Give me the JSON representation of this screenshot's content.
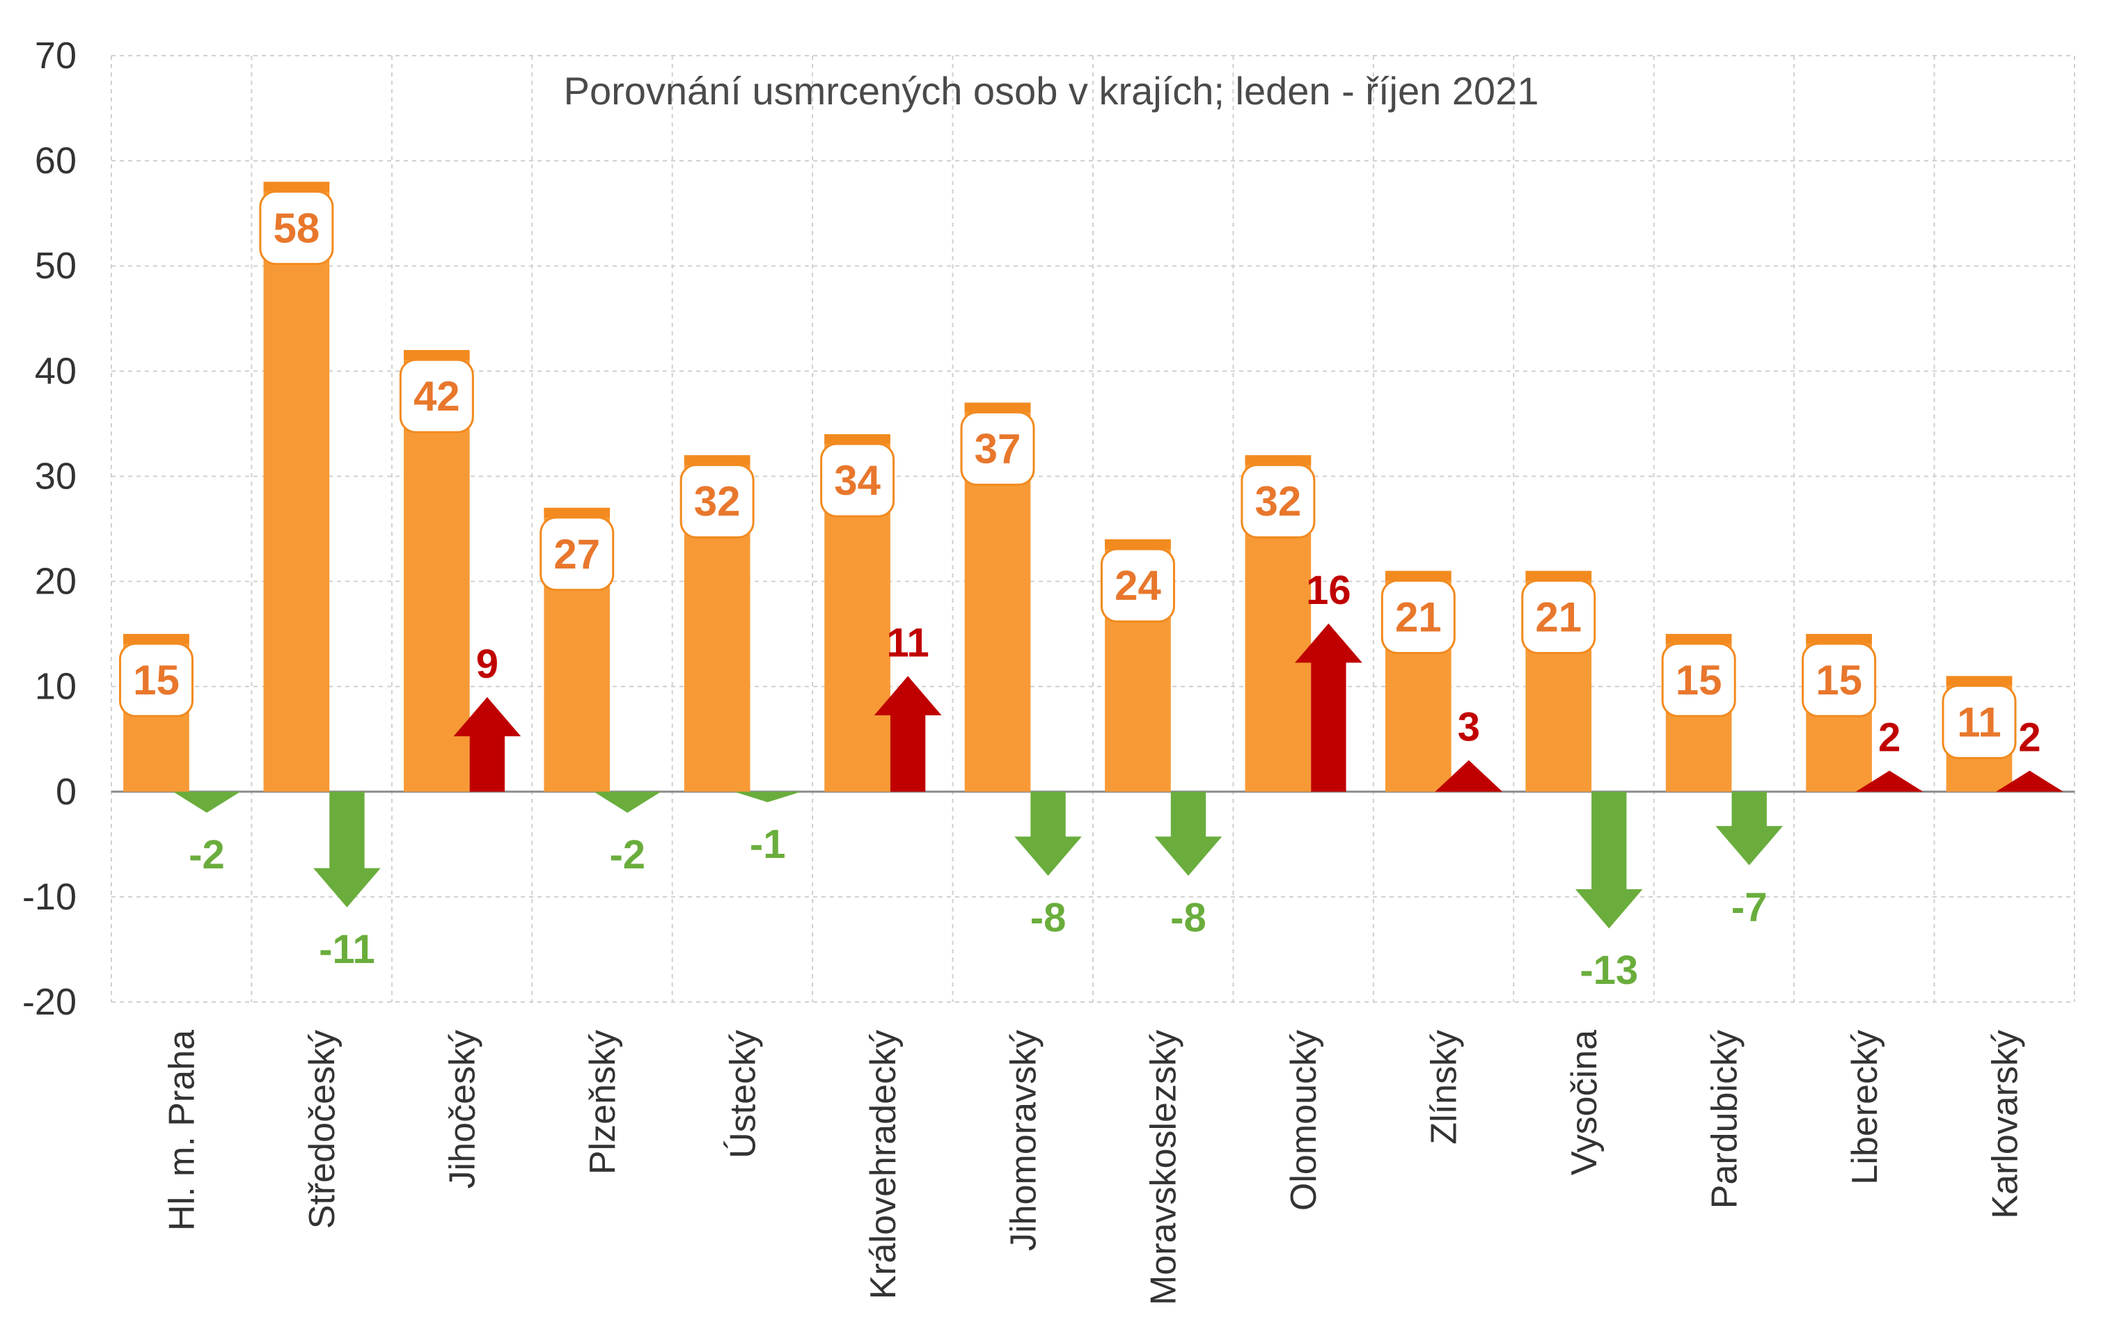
{
  "chart_data": {
    "type": "bar",
    "title": "Porovnání usmrcených osob v krajích; leden - říjen 2021",
    "categories": [
      "Hl. m. Praha",
      "Středočeský",
      "Jihočeský",
      "Plzeňský",
      "Ústecký",
      "Královehradecký",
      "Jihomoravský",
      "Moravskoslezský",
      "Olomoucký",
      "Zlínský",
      "Vysočina",
      "Pardubický",
      "Liberecký",
      "Karlovarský"
    ],
    "series": [
      {
        "values": [
          15,
          58,
          42,
          27,
          32,
          34,
          37,
          24,
          32,
          21,
          21,
          15,
          15,
          11
        ],
        "color": "#f79a36"
      },
      {
        "values": [
          -2,
          -11,
          9,
          -2,
          -1,
          11,
          -8,
          -8,
          16,
          3,
          -13,
          -7,
          2,
          2
        ]
      }
    ],
    "colors": {
      "bar": "#f79a36",
      "increase": "#c00000",
      "decrease": "#6aad3c"
    },
    "ylim": [
      -20,
      70
    ],
    "yticks": [
      70,
      60,
      50,
      40,
      30,
      20,
      10,
      0,
      -10,
      -20
    ],
    "grid": true
  }
}
